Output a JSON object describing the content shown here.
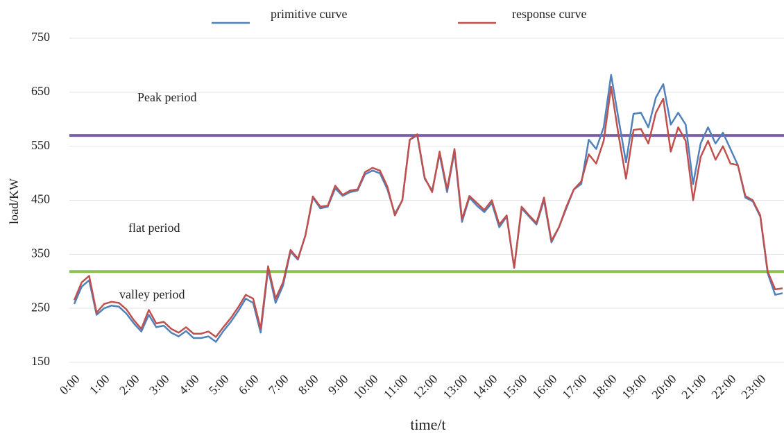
{
  "chart_data": {
    "type": "line",
    "x_label": "time/t",
    "y_label": "load/KW",
    "categories": [
      "0:00",
      null,
      null,
      null,
      "1:00",
      null,
      null,
      null,
      "2:00",
      null,
      null,
      null,
      "3:00",
      null,
      null,
      null,
      "4:00",
      null,
      null,
      null,
      "5:00",
      null,
      null,
      null,
      "6:00",
      null,
      null,
      null,
      "7:00",
      null,
      null,
      null,
      "8:00",
      null,
      null,
      null,
      "9:00",
      null,
      null,
      null,
      "10:00",
      null,
      null,
      null,
      "11:00",
      null,
      null,
      null,
      "12:00",
      null,
      null,
      null,
      "13:00",
      null,
      null,
      null,
      "14:00",
      null,
      null,
      null,
      "15:00",
      null,
      null,
      null,
      "16:00",
      null,
      null,
      null,
      "17:00",
      null,
      null,
      null,
      "18:00",
      null,
      null,
      null,
      "19:00",
      null,
      null,
      null,
      "20:00",
      null,
      null,
      null,
      "21:00",
      null,
      null,
      null,
      "22:00",
      null,
      null,
      null,
      "23:00",
      null,
      null,
      null
    ],
    "series": [
      {
        "name": "primitive curve",
        "color": "#4f81bd",
        "values": [
          258,
          290,
          302,
          238,
          250,
          255,
          253,
          240,
          222,
          207,
          238,
          215,
          218,
          205,
          198,
          208,
          195,
          195,
          198,
          188,
          208,
          225,
          245,
          268,
          260,
          205,
          322,
          260,
          292,
          355,
          340,
          385,
          455,
          435,
          438,
          472,
          458,
          465,
          468,
          498,
          505,
          500,
          470,
          425,
          450,
          562,
          570,
          490,
          468,
          535,
          465,
          540,
          410,
          455,
          440,
          428,
          445,
          400,
          420,
          325,
          435,
          420,
          405,
          450,
          372,
          400,
          435,
          470,
          480,
          562,
          545,
          585,
          682,
          600,
          520,
          610,
          612,
          585,
          640,
          665,
          590,
          612,
          590,
          480,
          555,
          585,
          555,
          575,
          545,
          515,
          455,
          448,
          420,
          315,
          275,
          278
        ]
      },
      {
        "name": "response curve",
        "color": "#c0504d",
        "values": [
          265,
          298,
          310,
          242,
          258,
          262,
          260,
          248,
          228,
          212,
          247,
          222,
          225,
          212,
          205,
          215,
          203,
          203,
          207,
          197,
          215,
          232,
          252,
          275,
          268,
          212,
          328,
          268,
          298,
          358,
          342,
          385,
          457,
          438,
          440,
          477,
          460,
          468,
          470,
          502,
          510,
          505,
          475,
          422,
          450,
          562,
          572,
          492,
          465,
          540,
          470,
          545,
          415,
          458,
          445,
          432,
          450,
          405,
          422,
          325,
          438,
          422,
          408,
          455,
          375,
          400,
          438,
          470,
          485,
          535,
          518,
          560,
          660,
          570,
          490,
          580,
          582,
          555,
          612,
          638,
          540,
          585,
          560,
          450,
          530,
          560,
          525,
          550,
          518,
          515,
          458,
          450,
          422,
          318,
          285,
          287
        ]
      }
    ],
    "reference_lines": [
      {
        "value": 570,
        "color": "#7b5ea7"
      },
      {
        "value": 318,
        "color": "#8cc152"
      }
    ],
    "annotations": [
      "Peak period",
      "flat period",
      "valley period"
    ],
    "ylim": [
      150,
      750
    ],
    "yticks": [
      150,
      250,
      350,
      450,
      550,
      650,
      750
    ],
    "grid": true,
    "legend": "top"
  }
}
